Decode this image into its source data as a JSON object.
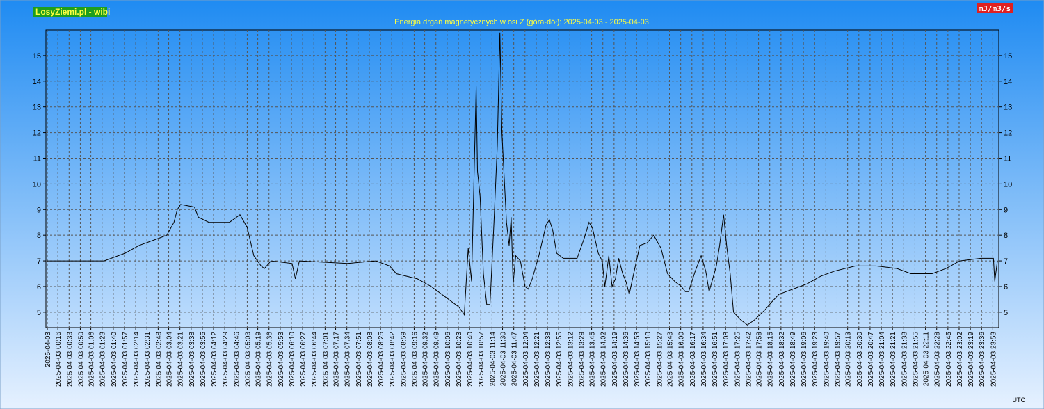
{
  "chart_data": {
    "type": "line",
    "brand": "LosyZiemi.pl - wibi",
    "title": "Energia drgań magnetycznych w osi Z (góra-dół): 2025-04-03 - 2025-04-03",
    "unit": "mJ/m3/s",
    "x_unit": "UTC",
    "color": "#000000",
    "grid": true,
    "xlim": [
      0,
      1440
    ],
    "ylim": [
      4.4,
      16
    ],
    "yticks": [
      5,
      6,
      7,
      8,
      9,
      10,
      11,
      12,
      13,
      14,
      15
    ],
    "xticks": [
      {
        "value": 0,
        "label": "2025-04-03"
      },
      {
        "value": 16,
        "label": "2025-04-03 00:16"
      },
      {
        "value": 33,
        "label": "2025-04-03 00:33"
      },
      {
        "value": 50,
        "label": "2025-04-03 00:50"
      },
      {
        "value": 66,
        "label": "2025-04-03 01:06"
      },
      {
        "value": 83,
        "label": "2025-04-03 01:23"
      },
      {
        "value": 100,
        "label": "2025-04-03 01:40"
      },
      {
        "value": 117,
        "label": "2025-04-03 01:57"
      },
      {
        "value": 134,
        "label": "2025-04-03 02:14"
      },
      {
        "value": 151,
        "label": "2025-04-03 02:31"
      },
      {
        "value": 168,
        "label": "2025-04-03 02:48"
      },
      {
        "value": 184,
        "label": "2025-04-03 03:04"
      },
      {
        "value": 201,
        "label": "2025-04-03 03:21"
      },
      {
        "value": 218,
        "label": "2025-04-03 03:38"
      },
      {
        "value": 235,
        "label": "2025-04-03 03:55"
      },
      {
        "value": 252,
        "label": "2025-04-03 04:12"
      },
      {
        "value": 269,
        "label": "2025-04-03 04:29"
      },
      {
        "value": 286,
        "label": "2025-04-03 04:46"
      },
      {
        "value": 303,
        "label": "2025-04-03 05:03"
      },
      {
        "value": 319,
        "label": "2025-04-03 05:19"
      },
      {
        "value": 336,
        "label": "2025-04-03 05:36"
      },
      {
        "value": 353,
        "label": "2025-04-03 05:53"
      },
      {
        "value": 370,
        "label": "2025-04-03 06:10"
      },
      {
        "value": 387,
        "label": "2025-04-03 06:27"
      },
      {
        "value": 404,
        "label": "2025-04-03 06:44"
      },
      {
        "value": 421,
        "label": "2025-04-03 07:01"
      },
      {
        "value": 437,
        "label": "2025-04-03 07:17"
      },
      {
        "value": 454,
        "label": "2025-04-03 07:34"
      },
      {
        "value": 471,
        "label": "2025-04-03 07:51"
      },
      {
        "value": 488,
        "label": "2025-04-03 08:08"
      },
      {
        "value": 505,
        "label": "2025-04-03 08:25"
      },
      {
        "value": 522,
        "label": "2025-04-03 08:42"
      },
      {
        "value": 539,
        "label": "2025-04-03 08:59"
      },
      {
        "value": 556,
        "label": "2025-04-03 09:16"
      },
      {
        "value": 572,
        "label": "2025-04-03 09:32"
      },
      {
        "value": 589,
        "label": "2025-04-03 09:49"
      },
      {
        "value": 606,
        "label": "2025-04-03 10:06"
      },
      {
        "value": 623,
        "label": "2025-04-03 10:23"
      },
      {
        "value": 640,
        "label": "2025-04-03 10:40"
      },
      {
        "value": 657,
        "label": "2025-04-03 10:57"
      },
      {
        "value": 674,
        "label": "2025-04-03 11:14"
      },
      {
        "value": 690,
        "label": "2025-04-03 11:30"
      },
      {
        "value": 707,
        "label": "2025-04-03 11:47"
      },
      {
        "value": 724,
        "label": "2025-04-03 12:04"
      },
      {
        "value": 741,
        "label": "2025-04-03 12:21"
      },
      {
        "value": 758,
        "label": "2025-04-03 12:38"
      },
      {
        "value": 775,
        "label": "2025-04-03 12:55"
      },
      {
        "value": 792,
        "label": "2025-04-03 13:12"
      },
      {
        "value": 809,
        "label": "2025-04-03 13:29"
      },
      {
        "value": 825,
        "label": "2025-04-03 13:45"
      },
      {
        "value": 842,
        "label": "2025-04-03 14:02"
      },
      {
        "value": 859,
        "label": "2025-04-03 14:19"
      },
      {
        "value": 876,
        "label": "2025-04-03 14:36"
      },
      {
        "value": 893,
        "label": "2025-04-03 14:53"
      },
      {
        "value": 910,
        "label": "2025-04-03 15:10"
      },
      {
        "value": 927,
        "label": "2025-04-03 15:27"
      },
      {
        "value": 943,
        "label": "2025-04-03 15:43"
      },
      {
        "value": 960,
        "label": "2025-04-03 16:00"
      },
      {
        "value": 977,
        "label": "2025-04-03 16:17"
      },
      {
        "value": 994,
        "label": "2025-04-03 16:34"
      },
      {
        "value": 1011,
        "label": "2025-04-03 16:51"
      },
      {
        "value": 1028,
        "label": "2025-04-03 17:08"
      },
      {
        "value": 1045,
        "label": "2025-04-03 17:25"
      },
      {
        "value": 1062,
        "label": "2025-04-03 17:42"
      },
      {
        "value": 1078,
        "label": "2025-04-03 17:58"
      },
      {
        "value": 1095,
        "label": "2025-04-03 18:15"
      },
      {
        "value": 1112,
        "label": "2025-04-03 18:32"
      },
      {
        "value": 1129,
        "label": "2025-04-03 18:49"
      },
      {
        "value": 1146,
        "label": "2025-04-03 19:06"
      },
      {
        "value": 1163,
        "label": "2025-04-03 19:23"
      },
      {
        "value": 1180,
        "label": "2025-04-03 19:40"
      },
      {
        "value": 1197,
        "label": "2025-04-03 19:57"
      },
      {
        "value": 1213,
        "label": "2025-04-03 20:13"
      },
      {
        "value": 1230,
        "label": "2025-04-03 20:30"
      },
      {
        "value": 1247,
        "label": "2025-04-03 20:47"
      },
      {
        "value": 1264,
        "label": "2025-04-03 21:04"
      },
      {
        "value": 1281,
        "label": "2025-04-03 21:21"
      },
      {
        "value": 1298,
        "label": "2025-04-03 21:38"
      },
      {
        "value": 1315,
        "label": "2025-04-03 21:55"
      },
      {
        "value": 1331,
        "label": "2025-04-03 22:11"
      },
      {
        "value": 1348,
        "label": "2025-04-03 22:28"
      },
      {
        "value": 1365,
        "label": "2025-04-03 22:45"
      },
      {
        "value": 1382,
        "label": "2025-04-03 23:02"
      },
      {
        "value": 1399,
        "label": "2025-04-03 23:19"
      },
      {
        "value": 1416,
        "label": "2025-04-03 23:36"
      },
      {
        "value": 1433,
        "label": "2025-04-03 23:53"
      }
    ],
    "x": [
      0,
      86,
      118,
      139,
      171,
      181,
      192,
      197,
      202,
      223,
      229,
      245,
      276,
      292,
      303,
      313,
      324,
      329,
      339,
      371,
      376,
      382,
      455,
      498,
      519,
      529,
      561,
      582,
      603,
      624,
      632,
      638,
      643,
      650,
      652,
      656,
      661,
      666,
      671,
      677,
      682,
      686,
      689,
      696,
      700,
      703,
      706,
      710,
      717,
      724,
      729,
      735,
      745,
      756,
      761,
      766,
      772,
      782,
      803,
      814,
      821,
      826,
      835,
      841,
      845,
      851,
      856,
      861,
      866,
      872,
      877,
      882,
      887,
      898,
      909,
      919,
      930,
      940,
      951,
      961,
      967,
      972,
      982,
      991,
      998,
      1003,
      1014,
      1019,
      1025,
      1030,
      1035,
      1040,
      1051,
      1061,
      1072,
      1088,
      1098,
      1109,
      1130,
      1151,
      1172,
      1193,
      1225,
      1256,
      1288,
      1309,
      1341,
      1362,
      1383,
      1415,
      1434,
      1436,
      1440
    ],
    "values": [
      7.0,
      7.0,
      7.3,
      7.6,
      7.9,
      8.0,
      8.5,
      9.0,
      9.2,
      9.1,
      8.7,
      8.5,
      8.5,
      8.8,
      8.3,
      7.2,
      6.8,
      6.7,
      7.0,
      6.9,
      6.3,
      7.0,
      6.9,
      7.0,
      6.8,
      6.5,
      6.3,
      6.0,
      5.6,
      5.2,
      4.9,
      7.5,
      6.2,
      13.8,
      10.5,
      9.5,
      6.5,
      5.3,
      5.3,
      8.5,
      11.5,
      15.9,
      12.0,
      8.5,
      7.6,
      8.7,
      6.1,
      7.2,
      7.0,
      6.0,
      5.9,
      6.3,
      7.2,
      8.4,
      8.6,
      8.2,
      7.3,
      7.1,
      7.1,
      7.9,
      8.5,
      8.3,
      7.3,
      7.0,
      6.0,
      7.2,
      6.0,
      6.3,
      7.1,
      6.5,
      6.2,
      5.7,
      6.3,
      7.6,
      7.7,
      8.0,
      7.5,
      6.5,
      6.2,
      6.0,
      5.8,
      5.8,
      6.6,
      7.2,
      6.6,
      5.8,
      6.8,
      7.6,
      8.8,
      7.5,
      6.5,
      5.0,
      4.7,
      4.5,
      4.7,
      5.1,
      5.4,
      5.7,
      5.9,
      6.1,
      6.4,
      6.6,
      6.8,
      6.8,
      6.7,
      6.5,
      6.5,
      6.7,
      7.0,
      7.1,
      7.1,
      6.2,
      7.0
    ]
  }
}
